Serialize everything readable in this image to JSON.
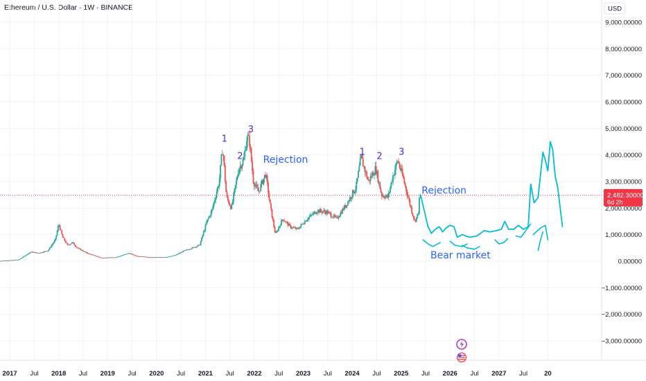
{
  "header": {
    "symbol_title": "Ethereum / U.S. Dollar · 1W · BINANCE"
  },
  "currency_button": {
    "label": "USD"
  },
  "price_tag": {
    "price": "2,482.30000",
    "countdown": "6d 2h"
  },
  "colors": {
    "up": "#26a69a",
    "down": "#ef5350",
    "drawing": "#00bcd4",
    "annotation": "#2962ff",
    "wave_label": "#4a2ad6",
    "price_line": "#f23645"
  },
  "chart_data": {
    "type": "candlestick",
    "title": "Ethereum / U.S. Dollar · 1W · BINANCE",
    "current_price": 2482.3,
    "ylim": [
      -3000,
      9000
    ],
    "y_ticks": [
      {
        "value": 9000,
        "label": "9,000.00000"
      },
      {
        "value": 8000,
        "label": "8,000.00000"
      },
      {
        "value": 7000,
        "label": "7,000.00000"
      },
      {
        "value": 6000,
        "label": "6,000.00000"
      },
      {
        "value": 5000,
        "label": "5,000.00000"
      },
      {
        "value": 4000,
        "label": "4,000.00000"
      },
      {
        "value": 3000,
        "label": "3,000.00000"
      },
      {
        "value": 2000,
        "label": "2,000.00000"
      },
      {
        "value": 1000,
        "label": "1,000.00000"
      },
      {
        "value": 0,
        "label": "0.00000"
      },
      {
        "value": -1000,
        "label": "−1,000.00000"
      },
      {
        "value": -2000,
        "label": "−2,000.00000"
      },
      {
        "value": -3000,
        "label": "−3,000.00000"
      }
    ],
    "xlim": [
      2016.8,
      2029.1
    ],
    "x_ticks": [
      {
        "t": 2017.0,
        "label": "2017",
        "bold": true
      },
      {
        "t": 2017.5,
        "label": "Jul",
        "bold": false
      },
      {
        "t": 2018.0,
        "label": "2018",
        "bold": true
      },
      {
        "t": 2018.5,
        "label": "Jul",
        "bold": false
      },
      {
        "t": 2019.0,
        "label": "2019",
        "bold": true
      },
      {
        "t": 2019.5,
        "label": "Jul",
        "bold": false
      },
      {
        "t": 2020.0,
        "label": "2020",
        "bold": true
      },
      {
        "t": 2020.5,
        "label": "Jul",
        "bold": false
      },
      {
        "t": 2021.0,
        "label": "2021",
        "bold": true
      },
      {
        "t": 2021.5,
        "label": "Jul",
        "bold": false
      },
      {
        "t": 2022.0,
        "label": "2022",
        "bold": true
      },
      {
        "t": 2022.5,
        "label": "Jul",
        "bold": false
      },
      {
        "t": 2023.0,
        "label": "2023",
        "bold": true
      },
      {
        "t": 2023.5,
        "label": "Jul",
        "bold": false
      },
      {
        "t": 2024.0,
        "label": "2024",
        "bold": true
      },
      {
        "t": 2024.5,
        "label": "Jul",
        "bold": false
      },
      {
        "t": 2025.0,
        "label": "2025",
        "bold": true
      },
      {
        "t": 2025.5,
        "label": "Jul",
        "bold": false
      },
      {
        "t": 2026.0,
        "label": "2026",
        "bold": true
      },
      {
        "t": 2026.5,
        "label": "Jul",
        "bold": false
      },
      {
        "t": 2027.0,
        "label": "2027",
        "bold": true
      },
      {
        "t": 2027.5,
        "label": "Jul",
        "bold": false
      },
      {
        "t": 2028.0,
        "label": "20",
        "bold": true
      }
    ],
    "price_path": [
      [
        2016.8,
        8
      ],
      [
        2017.2,
        50
      ],
      [
        2017.45,
        350
      ],
      [
        2017.6,
        300
      ],
      [
        2017.8,
        400
      ],
      [
        2017.95,
        800
      ],
      [
        2018.02,
        1400
      ],
      [
        2018.1,
        900
      ],
      [
        2018.2,
        600
      ],
      [
        2018.3,
        700
      ],
      [
        2018.4,
        500
      ],
      [
        2018.6,
        300
      ],
      [
        2018.9,
        120
      ],
      [
        2019.2,
        150
      ],
      [
        2019.45,
        300
      ],
      [
        2019.6,
        200
      ],
      [
        2019.9,
        140
      ],
      [
        2020.2,
        150
      ],
      [
        2020.4,
        220
      ],
      [
        2020.6,
        400
      ],
      [
        2020.9,
        600
      ],
      [
        2021.05,
        1500
      ],
      [
        2021.15,
        1900
      ],
      [
        2021.3,
        3000
      ],
      [
        2021.37,
        4300
      ],
      [
        2021.45,
        2400
      ],
      [
        2021.55,
        2000
      ],
      [
        2021.7,
        3500
      ],
      [
        2021.8,
        3800
      ],
      [
        2021.87,
        4700
      ],
      [
        2021.92,
        4500
      ],
      [
        2022.0,
        3000
      ],
      [
        2022.1,
        2600
      ],
      [
        2022.25,
        3300
      ],
      [
        2022.35,
        2000
      ],
      [
        2022.45,
        1000
      ],
      [
        2022.6,
        1600
      ],
      [
        2022.75,
        1300
      ],
      [
        2022.9,
        1200
      ],
      [
        2023.1,
        1600
      ],
      [
        2023.3,
        1900
      ],
      [
        2023.5,
        1850
      ],
      [
        2023.7,
        1600
      ],
      [
        2023.85,
        2000
      ],
      [
        2023.95,
        2300
      ],
      [
        2024.1,
        2800
      ],
      [
        2024.2,
        3900
      ],
      [
        2024.35,
        3000
      ],
      [
        2024.5,
        3500
      ],
      [
        2024.62,
        2500
      ],
      [
        2024.75,
        2400
      ],
      [
        2024.85,
        3200
      ],
      [
        2024.95,
        3800
      ],
      [
        2025.05,
        3200
      ],
      [
        2025.15,
        2500
      ],
      [
        2025.25,
        1800
      ],
      [
        2025.3,
        1500
      ],
      [
        2025.37,
        1800
      ],
      [
        2025.4,
        2482
      ]
    ],
    "projection_path": [
      [
        2025.4,
        2482
      ],
      [
        2025.55,
        1300
      ],
      [
        2025.62,
        1050
      ],
      [
        2025.7,
        1200
      ],
      [
        2025.78,
        1300
      ],
      [
        2025.85,
        1100
      ],
      [
        2025.92,
        1250
      ],
      [
        2026.0,
        1350
      ],
      [
        2026.08,
        1300
      ],
      [
        2026.15,
        900
      ],
      [
        2026.25,
        1000
      ],
      [
        2026.4,
        900
      ],
      [
        2026.55,
        950
      ],
      [
        2026.7,
        1150
      ],
      [
        2026.82,
        1100
      ],
      [
        2026.95,
        1150
      ],
      [
        2027.05,
        1200
      ],
      [
        2027.12,
        1500
      ],
      [
        2027.2,
        1200
      ],
      [
        2027.3,
        1200
      ],
      [
        2027.4,
        1350
      ],
      [
        2027.5,
        1200
      ],
      [
        2027.6,
        1300
      ],
      [
        2027.65,
        2900
      ],
      [
        2027.72,
        2200
      ],
      [
        2027.8,
        2400
      ],
      [
        2027.9,
        4100
      ],
      [
        2027.95,
        3800
      ],
      [
        2028.0,
        3400
      ],
      [
        2028.05,
        4500
      ],
      [
        2028.1,
        4200
      ],
      [
        2028.15,
        3200
      ],
      [
        2028.2,
        2800
      ],
      [
        2028.3,
        1300
      ]
    ],
    "drawing_arcs": [
      [
        [
          2025.45,
          800
        ],
        [
          2025.55,
          650
        ],
        [
          2025.65,
          550
        ],
        [
          2025.8,
          700
        ]
      ],
      [
        [
          2026.0,
          750
        ],
        [
          2026.1,
          600
        ],
        [
          2026.25,
          550
        ],
        [
          2026.35,
          650
        ]
      ],
      [
        [
          2026.25,
          600
        ],
        [
          2026.35,
          500
        ],
        [
          2026.5,
          450
        ],
        [
          2026.6,
          550
        ]
      ],
      [
        [
          2026.92,
          800
        ],
        [
          2027.0,
          650
        ],
        [
          2027.1,
          700
        ],
        [
          2027.18,
          850
        ]
      ],
      [
        [
          2027.35,
          950
        ],
        [
          2027.45,
          900
        ],
        [
          2027.55,
          1150
        ],
        [
          2027.65,
          1400
        ]
      ],
      [
        [
          2027.7,
          1000
        ],
        [
          2027.85,
          1250
        ],
        [
          2027.95,
          1350
        ],
        [
          2028.0,
          800
        ]
      ],
      [
        [
          2027.8,
          400
        ],
        [
          2027.85,
          800
        ],
        [
          2027.9,
          1100
        ]
      ]
    ],
    "annotations": {
      "wave_2021": [
        {
          "text": "1",
          "t": 2021.33,
          "v": 4500
        },
        {
          "text": "2",
          "t": 2021.65,
          "v": 3850
        },
        {
          "text": "3",
          "t": 2021.87,
          "v": 4850
        }
      ],
      "wave_2024": [
        {
          "text": "1",
          "t": 2024.15,
          "v": 4000
        },
        {
          "text": "2",
          "t": 2024.5,
          "v": 3850
        },
        {
          "text": "3",
          "t": 2024.95,
          "v": 4000
        }
      ],
      "rejection_1": {
        "text": "Rejection",
        "t": 2022.18,
        "v": 3700
      },
      "rejection_2": {
        "text": "Rejection",
        "t": 2025.42,
        "v": 2550
      },
      "bear_market": {
        "text": "Bear market",
        "t": 2025.6,
        "v": 100
      }
    }
  }
}
